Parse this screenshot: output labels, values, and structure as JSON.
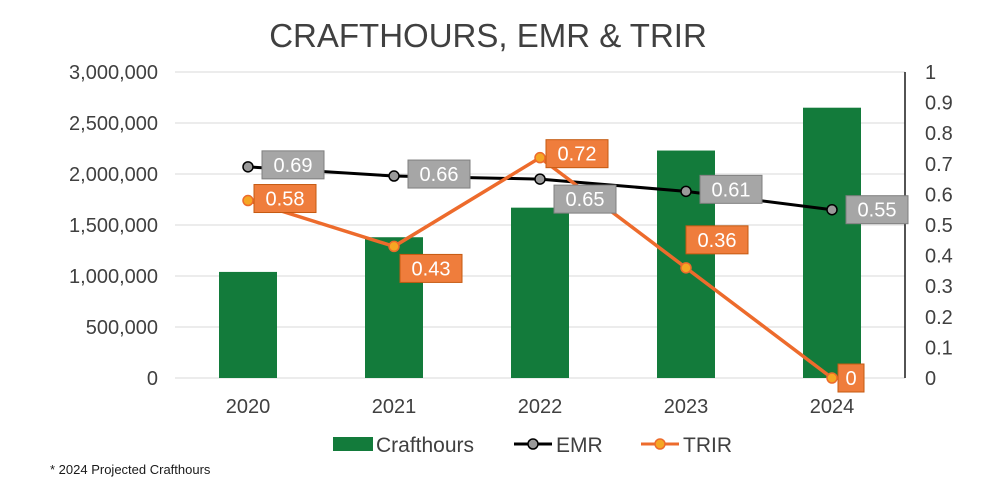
{
  "chart_data": {
    "type": "bar",
    "title": "CRAFTHOURS, EMR & TRIR",
    "categories": [
      "2020",
      "2021",
      "2022",
      "2023",
      "2024"
    ],
    "ylim": [
      0,
      3000000
    ],
    "y_ticks": [
      "0",
      "500,000",
      "1,000,000",
      "1,500,000",
      "2,000,000",
      "2,500,000",
      "3,000,000"
    ],
    "y2lim": [
      0,
      1
    ],
    "y2_ticks": [
      "0",
      "0.1",
      "0.2",
      "0.3",
      "0.4",
      "0.5",
      "0.6",
      "0.7",
      "0.8",
      "0.9",
      "1"
    ],
    "grid": true,
    "legend": "bottom",
    "series": [
      {
        "name": "Crafthours",
        "type": "bar",
        "axis": "left",
        "color": "#137b3b",
        "values": [
          1040000,
          1380000,
          1670000,
          2230000,
          2650000
        ]
      },
      {
        "name": "EMR",
        "type": "line",
        "axis": "right",
        "color": "#000000",
        "marker_color": "#9a9a9a",
        "label_color": "#a6a6a6",
        "values": [
          0.69,
          0.66,
          0.65,
          0.61,
          0.55
        ],
        "labels": [
          "0.69",
          "0.66",
          "0.65",
          "0.61",
          "0.55"
        ]
      },
      {
        "name": "TRIR",
        "type": "line",
        "axis": "right",
        "color": "#ed6b2c",
        "marker_color": "#f5a623",
        "label_color": "#ef7d3c",
        "values": [
          0.58,
          0.43,
          0.72,
          0.36,
          0
        ],
        "labels": [
          "0.58",
          "0.43",
          "0.72",
          "0.36",
          "0"
        ]
      }
    ],
    "footnote": "* 2024 Projected Crafthours"
  }
}
